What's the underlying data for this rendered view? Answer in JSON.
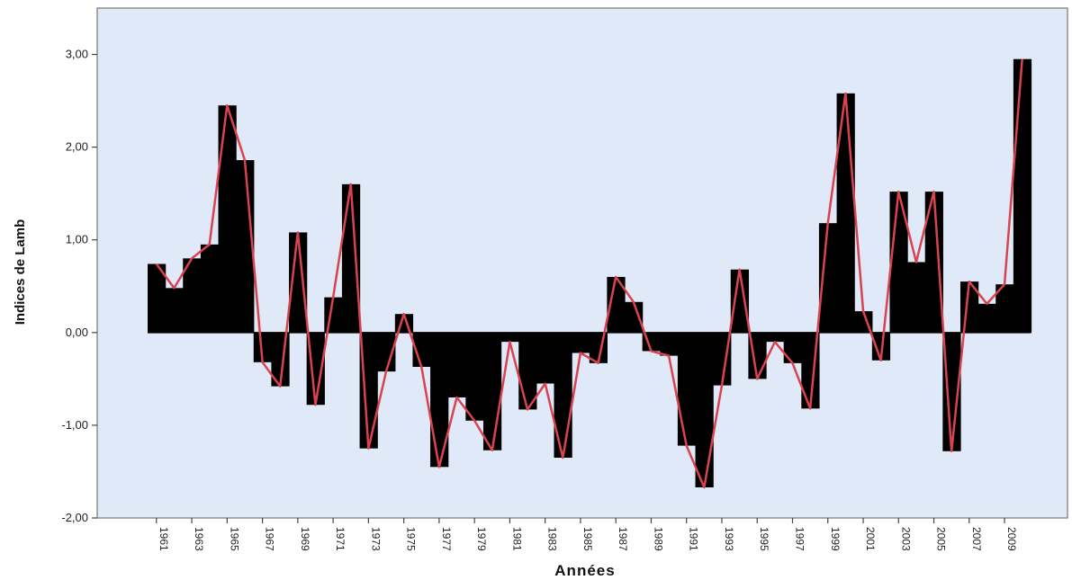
{
  "chart_data": {
    "type": "bar",
    "overlay": "line",
    "xlabel": "Années",
    "ylabel": "Indices de Lamb",
    "ylim": [
      -2,
      3.5
    ],
    "yticks": [
      -2,
      -1,
      0,
      1,
      2,
      3
    ],
    "ytick_labels": [
      "-2,00",
      "-1,00",
      "0,00",
      "1,00",
      "2,00",
      "3,00"
    ],
    "x": [
      1961,
      1962,
      1963,
      1964,
      1965,
      1966,
      1967,
      1968,
      1969,
      1970,
      1971,
      1972,
      1973,
      1974,
      1975,
      1976,
      1977,
      1978,
      1979,
      1980,
      1981,
      1982,
      1983,
      1984,
      1985,
      1986,
      1987,
      1988,
      1989,
      1990,
      1991,
      1992,
      1993,
      1994,
      1995,
      1996,
      1997,
      1998,
      1999,
      2000,
      2001,
      2002,
      2003,
      2004,
      2005,
      2006,
      2007,
      2008,
      2009,
      2010
    ],
    "xtick_labels": [
      "1961",
      "1963",
      "1965",
      "1967",
      "1969",
      "1971",
      "1973",
      "1975",
      "1977",
      "1979",
      "1981",
      "1983",
      "1985",
      "1987",
      "1989",
      "1991",
      "1993",
      "1995",
      "1997",
      "1999",
      "2001",
      "2003",
      "2005",
      "2007",
      "2009"
    ],
    "values": [
      0.74,
      0.48,
      0.8,
      0.95,
      2.45,
      1.86,
      -0.32,
      -0.58,
      1.08,
      -0.78,
      0.38,
      1.6,
      -1.25,
      -0.42,
      0.2,
      -0.37,
      -1.45,
      -0.7,
      -0.95,
      -1.27,
      -0.1,
      -0.83,
      -0.55,
      -1.35,
      -0.22,
      -0.33,
      0.6,
      0.33,
      -0.2,
      -0.25,
      -1.22,
      -1.67,
      -0.57,
      0.68,
      -0.5,
      -0.1,
      -0.33,
      -0.82,
      1.18,
      2.58,
      0.23,
      -0.3,
      1.52,
      0.76,
      1.52,
      -1.28,
      0.55,
      0.31,
      0.52,
      2.95
    ],
    "grid": false,
    "colors": {
      "bar": "#000000",
      "line": "#d9434f",
      "plot_background": "#dfe9f7",
      "frame": "#8f8f8f"
    }
  }
}
